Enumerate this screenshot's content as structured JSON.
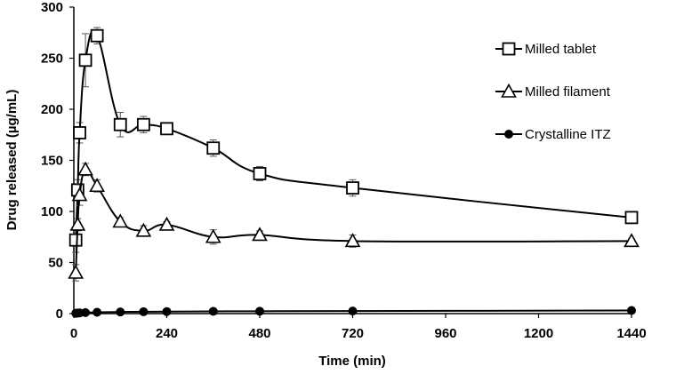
{
  "chart_data": {
    "type": "line",
    "title": "",
    "xlabel": "Time (min)",
    "ylabel": "Drug released (µg/mL)",
    "xlim": [
      0,
      1440
    ],
    "ylim": [
      0,
      300
    ],
    "xticks": [
      0,
      240,
      480,
      720,
      960,
      1200,
      1440
    ],
    "yticks": [
      0,
      50,
      100,
      150,
      200,
      250,
      300
    ],
    "grid": false,
    "legend_position": "top-right",
    "x": [
      5,
      10,
      15,
      30,
      60,
      120,
      180,
      240,
      360,
      480,
      720,
      1440
    ],
    "series": [
      {
        "name": "Milled tablet",
        "marker": "square-open",
        "values": [
          72,
          121,
          177,
          248,
          272,
          185,
          185,
          181,
          162,
          137,
          123,
          94
        ],
        "errors": [
          12,
          10,
          10,
          26,
          8,
          12,
          8,
          4,
          8,
          7,
          8,
          3
        ]
      },
      {
        "name": "Milled filament",
        "marker": "triangle-open",
        "values": [
          40,
          87,
          116,
          141,
          125,
          90,
          81,
          87,
          75,
          77,
          71,
          71
        ],
        "errors": [
          8,
          6,
          10,
          6,
          6,
          4,
          5,
          3,
          7,
          4,
          6,
          2
        ]
      },
      {
        "name": "Crystalline ITZ",
        "marker": "circle-filled",
        "values": [
          0.3,
          0.5,
          0.7,
          1,
          1.3,
          1.6,
          1.8,
          2,
          2.2,
          2.3,
          2.5,
          3
        ],
        "errors": [
          0,
          0,
          0,
          0,
          0,
          0,
          0,
          0,
          0,
          0,
          0,
          0
        ]
      }
    ]
  }
}
